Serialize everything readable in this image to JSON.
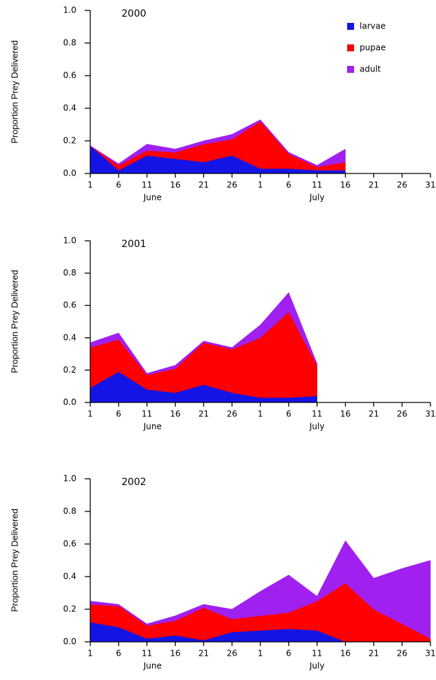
{
  "chart_data": [
    {
      "type": "area",
      "title": "2000",
      "y_label": "Proportion Prey Delivered",
      "categories": [
        "1",
        "6",
        "11",
        "16",
        "21",
        "26",
        "1",
        "6",
        "11",
        "16",
        "21",
        "26",
        "31"
      ],
      "x_group_labels": [
        "June",
        "July"
      ],
      "ylim": [
        0,
        1
      ],
      "yticks": [
        {
          "value": 0,
          "label": "0.0"
        },
        0.2,
        0.4,
        0.6,
        0.8,
        {
          "value": 1,
          "label": "1.0"
        }
      ],
      "legend": "upper right",
      "series": [
        {
          "name": "larvae",
          "color": "#1414e6",
          "values": [
            0.17,
            0.02,
            0.11,
            0.09,
            0.07,
            0.11,
            0.03,
            0.03,
            0.02,
            0.02,
            null,
            null,
            null
          ]
        },
        {
          "name": "pupae",
          "color": "#ff0000",
          "values": [
            0,
            0.03,
            0.03,
            0.04,
            0.11,
            0.1,
            0.29,
            0.09,
            0.02,
            0.05,
            null,
            null,
            null
          ]
        },
        {
          "name": "adult",
          "color": "#a020f0",
          "values": [
            0,
            0.01,
            0.04,
            0.02,
            0.02,
            0.03,
            0.01,
            0.01,
            0.01,
            0.08,
            null,
            null,
            null
          ]
        }
      ]
    },
    {
      "type": "area",
      "title": "2001",
      "y_label": "Proportion Prey Delivered",
      "categories": [
        "1",
        "6",
        "11",
        "16",
        "21",
        "26",
        "1",
        "6",
        "11",
        "16",
        "21",
        "26",
        "31"
      ],
      "x_group_labels": [
        "June",
        "July"
      ],
      "ylim": [
        0,
        1
      ],
      "yticks": [
        {
          "value": 0,
          "label": "0.0"
        },
        0.2,
        0.4,
        0.6,
        0.8,
        {
          "value": 1,
          "label": "1.0"
        }
      ],
      "series": [
        {
          "name": "larvae",
          "color": "#1414e6",
          "values": [
            0.09,
            0.19,
            0.08,
            0.06,
            0.11,
            0.06,
            0.03,
            0.03,
            0.04,
            null,
            null,
            null,
            null
          ]
        },
        {
          "name": "pupae",
          "color": "#ff0000",
          "values": [
            0.25,
            0.2,
            0.09,
            0.15,
            0.26,
            0.27,
            0.37,
            0.53,
            0.19,
            null,
            null,
            null,
            null
          ]
        },
        {
          "name": "adult",
          "color": "#a020f0",
          "values": [
            0.03,
            0.04,
            0.01,
            0.02,
            0.01,
            0.01,
            0.08,
            0.12,
            0.01,
            null,
            null,
            null,
            null
          ]
        }
      ]
    },
    {
      "type": "area",
      "title": "2002",
      "y_label": "Proportion Prey Delivered",
      "categories": [
        "1",
        "6",
        "11",
        "16",
        "21",
        "26",
        "1",
        "6",
        "11",
        "16",
        "21",
        "26",
        "31"
      ],
      "x_group_labels": [
        "June",
        "July"
      ],
      "ylim": [
        0,
        1
      ],
      "yticks": [
        {
          "value": 0,
          "label": "0.0"
        },
        0.2,
        0.4,
        0.6,
        0.8,
        {
          "value": 1,
          "label": "1.0"
        }
      ],
      "series": [
        {
          "name": "larvae",
          "color": "#1414e6",
          "values": [
            0.12,
            0.09,
            0.02,
            0.04,
            0.01,
            0.06,
            0.07,
            0.08,
            0.07,
            0,
            0,
            0,
            0
          ]
        },
        {
          "name": "pupae",
          "color": "#ff0000",
          "values": [
            0.11,
            0.13,
            0.08,
            0.09,
            0.2,
            0.08,
            0.09,
            0.1,
            0.18,
            0.36,
            0.2,
            0.11,
            0.02
          ]
        },
        {
          "name": "adult",
          "color": "#a020f0",
          "values": [
            0.02,
            0.01,
            0.01,
            0.03,
            0.02,
            0.06,
            0.15,
            0.23,
            0.03,
            0.26,
            0.19,
            0.34,
            0.48
          ]
        }
      ]
    }
  ]
}
